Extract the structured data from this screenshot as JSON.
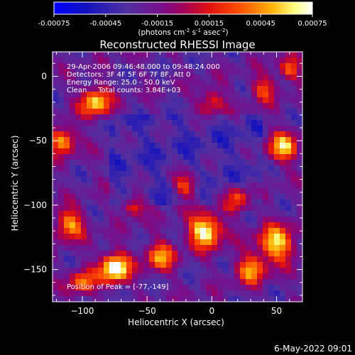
{
  "chart_data": {
    "type": "heatmap",
    "title": "Reconstructed RHESSI Image",
    "xlabel": "Heliocentric X (arcsec)",
    "ylabel": "Heliocentric Y (arcsec)",
    "xlim": [
      -123,
      70
    ],
    "ylim": [
      -175,
      19
    ],
    "x_ticks": [
      -100,
      -50,
      0,
      50
    ],
    "y_ticks": [
      0,
      -50,
      -100,
      -150
    ],
    "colorbar": {
      "range": [
        -0.00075,
        0.00075
      ],
      "ticks": [
        "-0.00075",
        "-0.00045",
        "-0.00015",
        "0.00015",
        "0.00045",
        "0.00075"
      ],
      "unit_label": "(photons cm",
      "unit_parts": [
        {
          "text": "(photons cm",
          "sup": false
        },
        {
          "text": "-2",
          "sup": true
        },
        {
          "text": " s",
          "sup": false
        },
        {
          "text": "-1",
          "sup": true
        },
        {
          "text": " asec",
          "sup": false
        },
        {
          "text": "-2",
          "sup": true
        },
        {
          "text": ")",
          "sup": false
        }
      ]
    },
    "annotations": [
      "29-Apr-2006 09:46:48.000 to 09:48:24.000",
      "Detectors: 3F 4F 5F 6F 7F 8F, Att 0",
      "Energy Range: 25.0 - 50.0 keV",
      "Clean     Total counts: 3.84E+03"
    ],
    "peak_label": "Position of Peak = [-77,-149]",
    "peak": {
      "x": -77,
      "y": -149
    },
    "hot_sources": [
      {
        "x": -75,
        "y": -149,
        "v": 1.0,
        "s": 8
      },
      {
        "x": -5,
        "y": -120,
        "v": 0.9,
        "s": 9
      },
      {
        "x": -90,
        "y": -20,
        "v": 0.75,
        "s": 8
      },
      {
        "x": -115,
        "y": -50,
        "v": 0.7,
        "s": 7
      },
      {
        "x": -110,
        "y": -115,
        "v": 0.65,
        "s": 8
      },
      {
        "x": 55,
        "y": -55,
        "v": 0.7,
        "s": 8
      },
      {
        "x": 50,
        "y": -130,
        "v": 0.75,
        "s": 10
      },
      {
        "x": 30,
        "y": -150,
        "v": 0.6,
        "s": 8
      },
      {
        "x": -40,
        "y": -140,
        "v": 0.6,
        "s": 8
      },
      {
        "x": -20,
        "y": -85,
        "v": 0.55,
        "s": 7
      },
      {
        "x": 20,
        "y": -95,
        "v": 0.55,
        "s": 7
      },
      {
        "x": -60,
        "y": -100,
        "v": 0.5,
        "s": 6
      },
      {
        "x": 0,
        "y": -20,
        "v": 0.45,
        "s": 7
      },
      {
        "x": 40,
        "y": -10,
        "v": 0.45,
        "s": 7
      },
      {
        "x": -100,
        "y": -160,
        "v": 0.55,
        "s": 7
      },
      {
        "x": 60,
        "y": 5,
        "v": 0.5,
        "s": 6
      }
    ],
    "grid": false,
    "legend": "none"
  },
  "footer": {
    "timestamp": "6-May-2022 09:01"
  }
}
